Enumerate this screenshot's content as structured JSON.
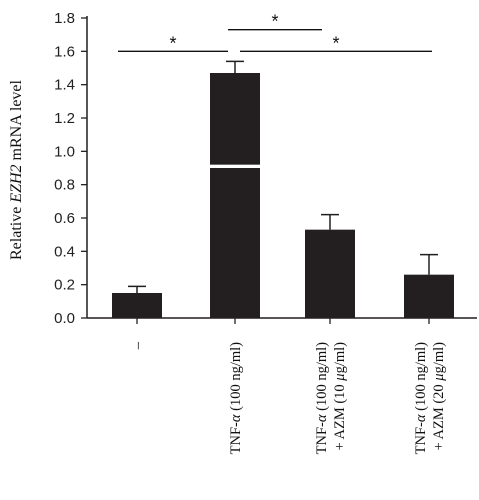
{
  "chart_data": {
    "type": "bar",
    "ylabel": {
      "prefix": "Relative ",
      "italic": "EZH2",
      "suffix": " mRNA level"
    },
    "ylim": [
      0,
      1.8
    ],
    "yticks": [
      "0.0",
      "0.2",
      "0.4",
      "0.6",
      "0.8",
      "1.0",
      "1.2",
      "1.4",
      "1.6",
      "1.8"
    ],
    "axis_break": [
      0.92,
      0.9
    ],
    "categories": [
      {
        "lines": [
          [
            {
              "t": "–"
            }
          ]
        ]
      },
      {
        "lines": [
          [
            {
              "t": "TNF-"
            },
            {
              "t": "α",
              "i": true
            },
            {
              "t": " (100 ng/ml)"
            }
          ]
        ]
      },
      {
        "lines": [
          [
            {
              "t": "TNF-"
            },
            {
              "t": "α",
              "i": true
            },
            {
              "t": " (100 ng/ml)"
            }
          ],
          [
            {
              "t": "+ AZM (10 "
            },
            {
              "t": "μ",
              "i": true
            },
            {
              "t": "g/ml)"
            }
          ]
        ]
      },
      {
        "lines": [
          [
            {
              "t": "TNF-"
            },
            {
              "t": "α",
              "i": true
            },
            {
              "t": " (100 ng/ml)"
            }
          ],
          [
            {
              "t": "+ AZM (20 "
            },
            {
              "t": "μ",
              "i": true
            },
            {
              "t": "g/ml)"
            }
          ]
        ]
      }
    ],
    "values": [
      0.15,
      1.47,
      0.53,
      0.26
    ],
    "errors": [
      0.04,
      0.07,
      0.09,
      0.12
    ],
    "significance": [
      {
        "from": 0,
        "to": 1,
        "y": 1.6,
        "label": "*"
      },
      {
        "from": 1,
        "to": 2,
        "y": 1.73,
        "label": "*"
      },
      {
        "from": 1,
        "to": 3,
        "y": 1.6,
        "label": "*"
      }
    ],
    "colors": {
      "bar": "#231f20",
      "axis": "#231f20"
    }
  }
}
